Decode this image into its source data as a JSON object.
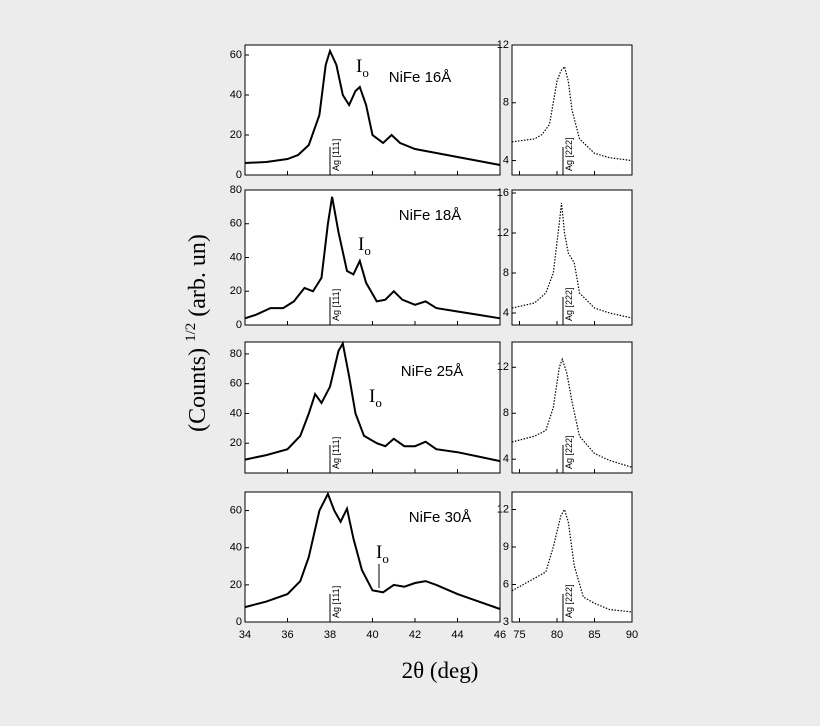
{
  "figure": {
    "xlabel": "2θ (deg)",
    "ylabel_pre": "(Counts) ",
    "ylabel_sup": "1/2",
    "ylabel_post": " (arb. un)"
  },
  "chart_data": [
    {
      "type": "line",
      "xlim": [
        34,
        46
      ],
      "ylim": [
        0,
        65
      ],
      "xticks": [
        34,
        36,
        38,
        40,
        42,
        44,
        46
      ],
      "show_xtick_labels": false,
      "yticks": [
        0,
        20,
        40,
        60
      ],
      "x": [
        34,
        35,
        36,
        36.5,
        37,
        37.5,
        37.8,
        38,
        38.3,
        38.6,
        38.9,
        39.2,
        39.4,
        39.7,
        40,
        40.5,
        40.9,
        41.3,
        42,
        43,
        44,
        45,
        46
      ],
      "series": [
        {
          "color": "#000000",
          "values": [
            6,
            6.5,
            8,
            10,
            15,
            30,
            55,
            62,
            55,
            40,
            35,
            42,
            44,
            35,
            20,
            16,
            20,
            16,
            13,
            11,
            9,
            7,
            5
          ]
        }
      ],
      "sample": "NiFe 16Å",
      "io": {
        "main": "I",
        "sub": "o"
      },
      "marker": {
        "label": "Ag [111]",
        "x": 38
      }
    },
    {
      "type": "line",
      "xlim": [
        34,
        46
      ],
      "ylim": [
        0,
        80
      ],
      "xticks": [
        34,
        36,
        38,
        40,
        42,
        44,
        46
      ],
      "show_xtick_labels": false,
      "yticks": [
        0,
        20,
        40,
        60,
        80
      ],
      "x": [
        34,
        34.5,
        35.2,
        35.8,
        36.3,
        36.8,
        37.2,
        37.6,
        37.9,
        38.1,
        38.4,
        38.8,
        39.1,
        39.4,
        39.7,
        40.2,
        40.6,
        41,
        41.4,
        42,
        42.5,
        43,
        44,
        45,
        46
      ],
      "series": [
        {
          "color": "#000000",
          "values": [
            4,
            6,
            10,
            10,
            14,
            22,
            20,
            28,
            60,
            76,
            55,
            32,
            30,
            38,
            25,
            14,
            15,
            20,
            15,
            12,
            14,
            10,
            8,
            6,
            4
          ]
        }
      ],
      "sample": "NiFe 18Å",
      "io": {
        "main": "I",
        "sub": "o"
      },
      "marker": {
        "label": "Ag [111]",
        "x": 38
      }
    },
    {
      "type": "line",
      "xlim": [
        34,
        46
      ],
      "ylim": [
        0,
        88
      ],
      "xticks": [
        34,
        36,
        38,
        40,
        42,
        44,
        46
      ],
      "show_xtick_labels": false,
      "yticks": [
        20,
        40,
        60,
        80
      ],
      "x": [
        34,
        35,
        36,
        36.6,
        37,
        37.3,
        37.6,
        38,
        38.4,
        38.6,
        38.9,
        39.2,
        39.6,
        40.2,
        40.6,
        41,
        41.5,
        42,
        42.5,
        43,
        44,
        45,
        46
      ],
      "series": [
        {
          "color": "#000000",
          "values": [
            9,
            12,
            16,
            25,
            40,
            53,
            47,
            58,
            82,
            87,
            65,
            40,
            25,
            20,
            18,
            23,
            18,
            18,
            21,
            16,
            14,
            11,
            8
          ]
        }
      ],
      "sample": "NiFe 25Å",
      "io": {
        "main": "I",
        "sub": "o"
      },
      "marker": {
        "label": "Ag [111]",
        "x": 38
      }
    },
    {
      "type": "line",
      "xlim": [
        34,
        46
      ],
      "ylim": [
        0,
        70
      ],
      "xticks": [
        34,
        36,
        38,
        40,
        42,
        44,
        46
      ],
      "show_xtick_labels": true,
      "yticks": [
        0,
        20,
        40,
        60
      ],
      "x": [
        34,
        35,
        36,
        36.6,
        37,
        37.5,
        37.9,
        38.2,
        38.5,
        38.8,
        39.1,
        39.5,
        40,
        40.5,
        41,
        41.5,
        42,
        42.5,
        43,
        44,
        45,
        46
      ],
      "series": [
        {
          "color": "#000000",
          "values": [
            8,
            11,
            15,
            22,
            35,
            60,
            69,
            60,
            54,
            61,
            45,
            28,
            17,
            16,
            20,
            19,
            21,
            22,
            20,
            15,
            11,
            7
          ]
        }
      ],
      "sample": "NiFe 30Å",
      "io": {
        "main": "I",
        "sub": "o"
      },
      "marker": {
        "label": "Ag [111]",
        "x": 38
      }
    },
    {
      "type": "line",
      "xlim": [
        74,
        90
      ],
      "ylim": [
        3,
        12
      ],
      "xticks": [
        75,
        80,
        85,
        90
      ],
      "show_xtick_labels": false,
      "yticks": [
        4,
        8,
        12
      ],
      "x": [
        74,
        77,
        78,
        79,
        80,
        80.5,
        81,
        81.5,
        82,
        83,
        85,
        87,
        90
      ],
      "series": [
        {
          "color": "#000000",
          "values": [
            5.3,
            5.5,
            5.8,
            6.5,
            9.5,
            10.2,
            10.5,
            9.5,
            7.5,
            5.5,
            4.5,
            4.2,
            4
          ]
        }
      ],
      "marker": {
        "label": "Ag [222]",
        "x": 80.8
      }
    },
    {
      "type": "line",
      "xlim": [
        74,
        90
      ],
      "ylim": [
        2.8,
        16.3
      ],
      "xticks": [
        75,
        80,
        85,
        90
      ],
      "show_xtick_labels": false,
      "yticks": [
        4,
        8,
        12,
        16
      ],
      "x": [
        74,
        77,
        78.5,
        79.5,
        80.3,
        80.6,
        81,
        81.5,
        82.3,
        83,
        85,
        87,
        90
      ],
      "series": [
        {
          "color": "#000000",
          "values": [
            4.5,
            5,
            6,
            8,
            13,
            15,
            12,
            10,
            9,
            6,
            4.5,
            4,
            3.5
          ]
        }
      ],
      "marker": {
        "label": "Ag [222]",
        "x": 80.8
      }
    },
    {
      "type": "line",
      "xlim": [
        74,
        90
      ],
      "ylim": [
        2.8,
        14.2
      ],
      "xticks": [
        75,
        80,
        85,
        90
      ],
      "show_xtick_labels": false,
      "yticks": [
        4,
        8,
        12
      ],
      "x": [
        74,
        77,
        78.5,
        79.5,
        80.3,
        80.7,
        81.3,
        82,
        83,
        85,
        87,
        90
      ],
      "series": [
        {
          "color": "#000000",
          "values": [
            5.5,
            6,
            6.5,
            8.5,
            12,
            12.7,
            11.5,
            9,
            6,
            4.5,
            3.9,
            3.3
          ]
        }
      ],
      "marker": {
        "label": "Ag [222]",
        "x": 80.8
      }
    },
    {
      "type": "line",
      "xlim": [
        74,
        90
      ],
      "ylim": [
        3,
        13.4
      ],
      "xticks": [
        75,
        80,
        85,
        90
      ],
      "show_xtick_labels": true,
      "yticks": [
        3,
        6,
        9,
        12
      ],
      "x": [
        74,
        77,
        78.5,
        79.5,
        80.5,
        81,
        81.5,
        82.3,
        83.5,
        85,
        87,
        90
      ],
      "series": [
        {
          "color": "#000000",
          "values": [
            5.5,
            6.5,
            7,
            9,
            11.5,
            12,
            11,
            7.5,
            5,
            4.5,
            4,
            3.8
          ]
        }
      ],
      "marker": {
        "label": "Ag [222]",
        "x": 80.8
      }
    }
  ]
}
